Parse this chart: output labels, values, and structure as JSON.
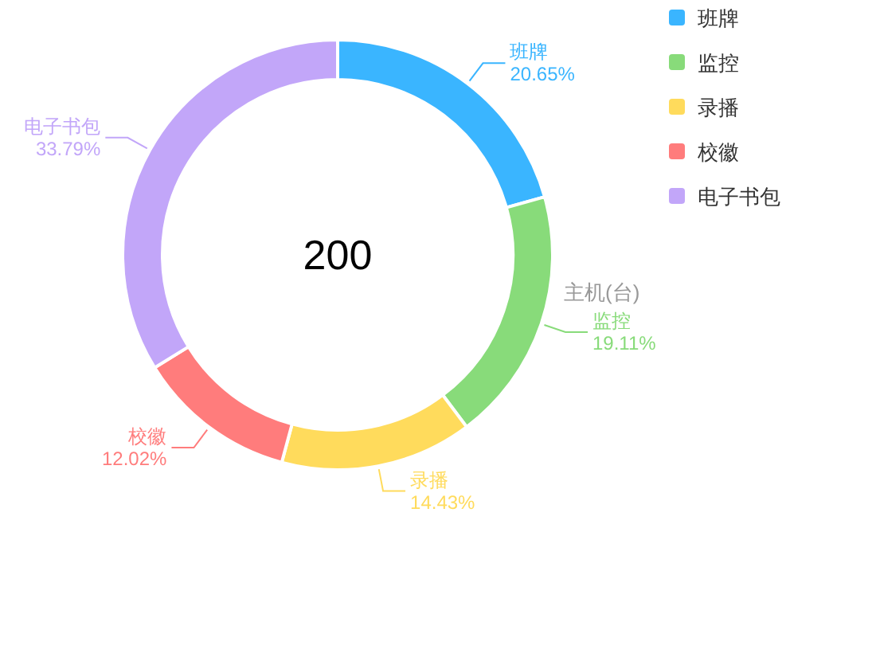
{
  "chart_data": {
    "type": "donut",
    "title": "200",
    "subtitle": "主机(台)",
    "categories": [
      "班牌",
      "监控",
      "录播",
      "校徽",
      "电子书包"
    ],
    "values": [
      20.65,
      19.11,
      14.43,
      12.02,
      33.79
    ],
    "value_labels": [
      "20.65%",
      "19.11%",
      "14.43%",
      "12.02%",
      "33.79%"
    ],
    "colors": [
      "#3ab5ff",
      "#88db7a",
      "#ffdb5c",
      "#ff7c7c",
      "#c2a6f9"
    ],
    "legend": "top right"
  }
}
